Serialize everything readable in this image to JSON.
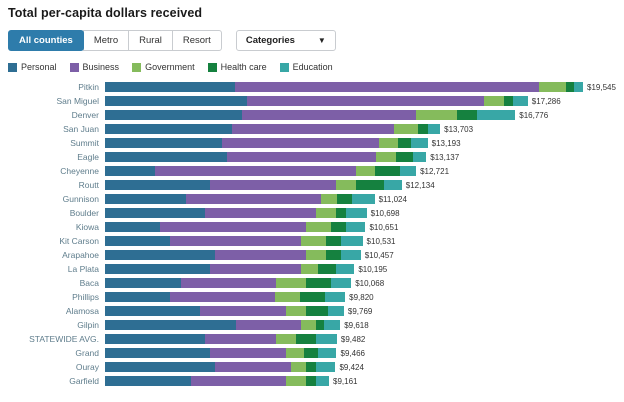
{
  "header": {
    "title": "Total per-capita dollars received"
  },
  "controls": {
    "tabs": [
      "All counties",
      "Metro",
      "Rural",
      "Resort"
    ],
    "selected_tab": "All counties",
    "categories_dropdown": {
      "label": "Categories",
      "icon": "chevron-down-icon"
    }
  },
  "colors": {
    "active_tab_bg": "#2e7cab",
    "active_tab_text": "#ffffff",
    "tab_border": "#c9ccd0",
    "county_label": "#5f7d8c",
    "value_label": "#333333"
  },
  "chart_data": {
    "type": "bar",
    "orientation": "horizontal",
    "stacked": true,
    "title": "Total per-capita dollars received",
    "legend_position": "top",
    "grid": false,
    "series_names": [
      "Personal",
      "Business",
      "Government",
      "Health care",
      "Education"
    ],
    "series_colors": [
      "#2e6e93",
      "#7d5fa7",
      "#85bb5c",
      "#15813f",
      "#38a7a6"
    ],
    "scale_max": 19545,
    "rows": [
      {
        "county": "Pitkin",
        "total": 19545,
        "total_label": "$19,545",
        "values": [
          5300,
          12450,
          1100,
          340,
          355
        ]
      },
      {
        "county": "San Miguel",
        "total": 17286,
        "total_label": "$17,286",
        "values": [
          5800,
          9700,
          800,
          400,
          586
        ]
      },
      {
        "county": "Denver",
        "total": 16776,
        "total_label": "$16,776",
        "values": [
          5600,
          7100,
          1700,
          800,
          1576
        ]
      },
      {
        "county": "San Juan",
        "total": 13703,
        "total_label": "$13,703",
        "values": [
          5200,
          6600,
          1000,
          400,
          503
        ]
      },
      {
        "county": "Summit",
        "total": 13193,
        "total_label": "$13,193",
        "values": [
          4800,
          6400,
          800,
          500,
          693
        ]
      },
      {
        "county": "Eagle",
        "total": 13137,
        "total_label": "$13,137",
        "values": [
          5000,
          6100,
          800,
          700,
          537
        ]
      },
      {
        "county": "Cheyenne",
        "total": 12721,
        "total_label": "$12,721",
        "values": [
          2050,
          8200,
          800,
          1000,
          671
        ]
      },
      {
        "county": "Routt",
        "total": 12134,
        "total_label": "$12,134",
        "values": [
          4300,
          5150,
          820,
          1150,
          714
        ]
      },
      {
        "county": "Gunnison",
        "total": 11024,
        "total_label": "$11,024",
        "values": [
          3300,
          5550,
          620,
          620,
          934
        ]
      },
      {
        "county": "Boulder",
        "total": 10698,
        "total_label": "$10,698",
        "values": [
          4100,
          4520,
          820,
          410,
          848
        ]
      },
      {
        "county": "Kiowa",
        "total": 10651,
        "total_label": "$10,651",
        "values": [
          2250,
          5950,
          1030,
          620,
          801
        ]
      },
      {
        "county": "Kit Carson",
        "total": 10531,
        "total_label": "$10,531",
        "values": [
          2650,
          5350,
          1030,
          620,
          881
        ]
      },
      {
        "county": "Arapahoe",
        "total": 10457,
        "total_label": "$10,457",
        "values": [
          4500,
          3700,
          820,
          620,
          817
        ]
      },
      {
        "county": "La Plata",
        "total": 10195,
        "total_label": "$10,195",
        "values": [
          4300,
          3700,
          700,
          740,
          755
        ]
      },
      {
        "county": "Baca",
        "total": 10068,
        "total_label": "$10,068",
        "values": [
          3100,
          3900,
          1230,
          1030,
          808
        ]
      },
      {
        "county": "Phillips",
        "total": 9820,
        "total_label": "$9,820",
        "values": [
          2650,
          4300,
          1030,
          1030,
          810
        ]
      },
      {
        "county": "Alamosa",
        "total": 9769,
        "total_label": "$9,769",
        "values": [
          3900,
          3500,
          820,
          900,
          649
        ]
      },
      {
        "county": "Gilpin",
        "total": 9618,
        "total_label": "$9,618",
        "values": [
          5350,
          2650,
          620,
          330,
          668
        ]
      },
      {
        "county": "STATEWIDE AVG.",
        "total": 9482,
        "total_label": "$9,482",
        "values": [
          4100,
          2900,
          820,
          820,
          842
        ]
      },
      {
        "county": "Grand",
        "total": 9466,
        "total_label": "$9,466",
        "values": [
          4300,
          3100,
          740,
          570,
          756
        ]
      },
      {
        "county": "Ouray",
        "total": 9424,
        "total_label": "$9,424",
        "values": [
          4500,
          3100,
          620,
          410,
          794
        ]
      },
      {
        "county": "Garfield",
        "total": 9161,
        "total_label": "$9,161",
        "values": [
          3500,
          3900,
          820,
          410,
          531
        ]
      }
    ]
  }
}
